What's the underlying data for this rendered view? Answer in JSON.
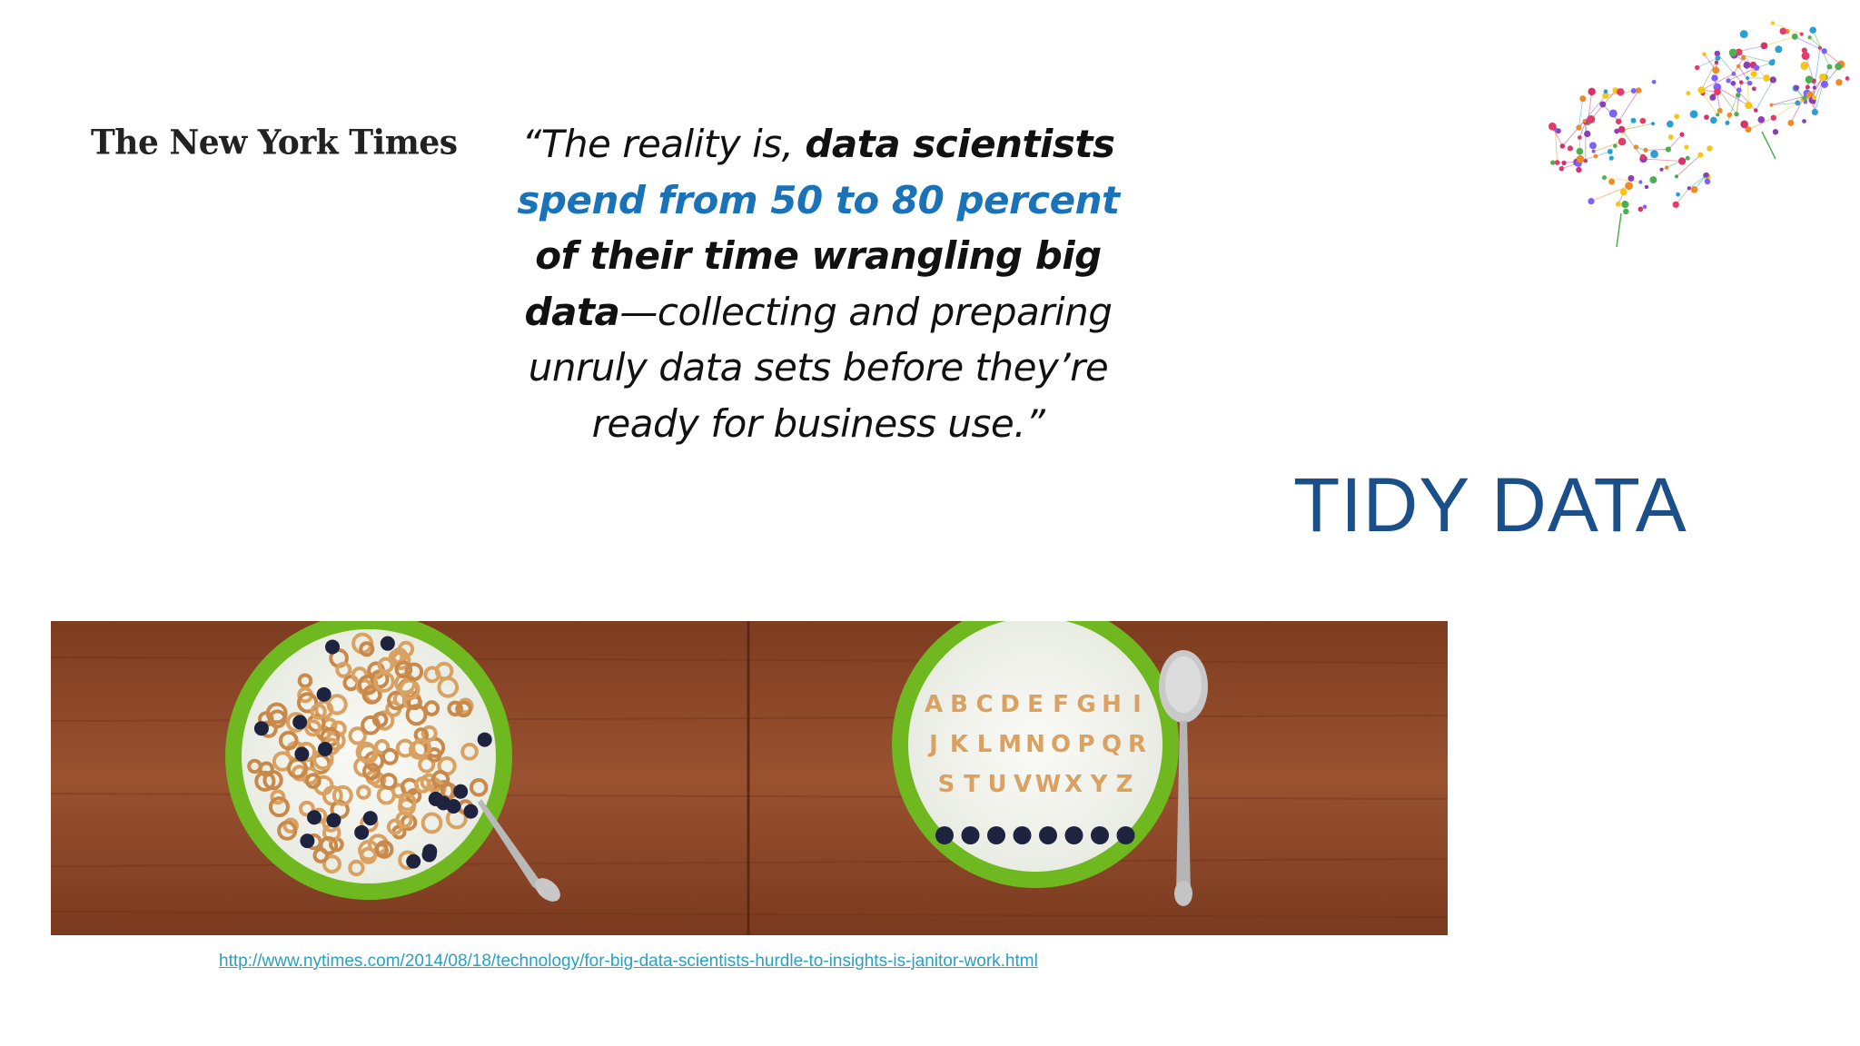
{
  "logo": {
    "text": "The New York Times"
  },
  "quote": {
    "open": "“The reality is, ",
    "bold1": "data scientists",
    "highlight": "spend from 50 to 80 percent",
    "bold2": "of their time wrangling big data",
    "rest": "—collecting and preparing unruly data sets before they’re ready for business use.”"
  },
  "title": "TIDY DATA",
  "images": {
    "brain": "network-brains-icon",
    "photo": "cereal-bowls-photo"
  },
  "source_link": "http://www.nytimes.com/2014/08/18/technology/for-big-data-scientists-hurdle-to-insights-is-janitor-work.html",
  "colors": {
    "highlight": "#1a73b8",
    "title": "#1a4f8a",
    "link": "#2a9fbf",
    "bowl": "#7cc22a",
    "table": "#8a4526"
  }
}
